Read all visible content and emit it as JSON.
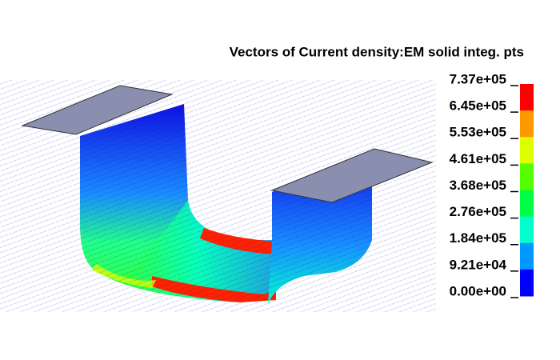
{
  "title": "Vectors of Current density:EM solid integ. pts",
  "legend": {
    "labels": [
      "7.37e+05",
      "6.45e+05",
      "5.53e+05",
      "4.61e+05",
      "3.68e+05",
      "2.76e+05",
      "1.84e+05",
      "9.21e+04",
      "0.00e+00"
    ],
    "colors": [
      "#ff0000",
      "#ff9900",
      "#ddff00",
      "#55ff00",
      "#00ff44",
      "#00ffcc",
      "#0099ff",
      "#0000ff"
    ]
  }
}
